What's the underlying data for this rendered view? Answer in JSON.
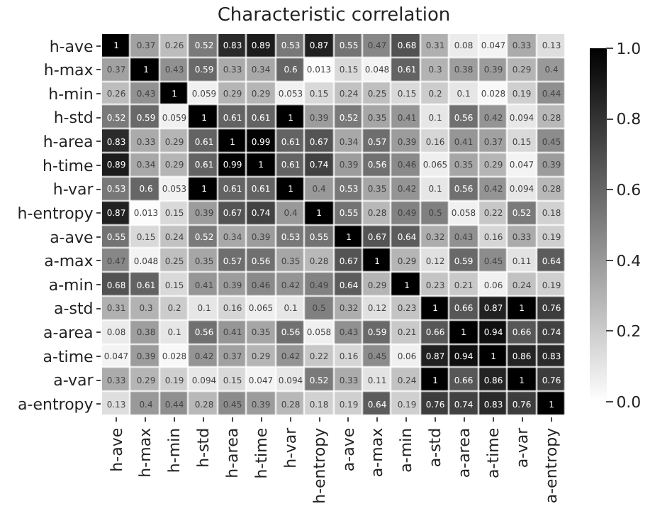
{
  "chart_data": {
    "type": "heatmap",
    "title": "Characteristic correlation",
    "categories": [
      "h-ave",
      "h-max",
      "h-min",
      "h-std",
      "h-area",
      "h-time",
      "h-var",
      "h-entropy",
      "a-ave",
      "a-max",
      "a-min",
      "a-std",
      "a-area",
      "a-time",
      "a-var",
      "a-entropy"
    ],
    "y_categories": [
      "h-ave",
      "h-max",
      "h-min",
      "h-std",
      "h-area",
      "h-time",
      "h-var",
      "h-entropy",
      "a-ave",
      "a-max",
      "a-min",
      "a-std",
      "a-area",
      "a-time",
      "a-var",
      "a-entropy"
    ],
    "cells": [
      [
        1,
        0.37,
        0.26,
        0.52,
        0.83,
        0.89,
        0.53,
        0.87,
        0.55,
        0.47,
        0.68,
        0.31,
        0.08,
        0.047,
        0.33,
        0.13
      ],
      [
        0.37,
        1,
        0.43,
        0.59,
        0.33,
        0.34,
        0.6,
        0.013,
        0.15,
        0.048,
        0.61,
        0.3,
        0.38,
        0.39,
        0.29,
        0.4
      ],
      [
        0.26,
        0.43,
        1,
        0.059,
        0.29,
        0.29,
        0.053,
        0.15,
        0.24,
        0.25,
        0.15,
        0.2,
        0.1,
        0.028,
        0.19,
        0.44
      ],
      [
        0.52,
        0.59,
        0.059,
        1,
        0.61,
        0.61,
        1,
        0.39,
        0.52,
        0.35,
        0.41,
        0.1,
        0.56,
        0.42,
        0.094,
        0.28
      ],
      [
        0.83,
        0.33,
        0.29,
        0.61,
        1,
        0.99,
        0.61,
        0.67,
        0.34,
        0.57,
        0.39,
        0.16,
        0.41,
        0.37,
        0.15,
        0.45
      ],
      [
        0.89,
        0.34,
        0.29,
        0.61,
        0.99,
        1,
        0.61,
        0.74,
        0.39,
        0.56,
        0.46,
        0.065,
        0.35,
        0.29,
        0.047,
        0.39
      ],
      [
        0.53,
        0.6,
        0.053,
        1,
        0.61,
        0.61,
        1,
        0.4,
        0.53,
        0.35,
        0.42,
        0.1,
        0.56,
        0.42,
        0.094,
        0.28
      ],
      [
        0.87,
        0.013,
        0.15,
        0.39,
        0.67,
        0.74,
        0.4,
        1,
        0.55,
        0.28,
        0.49,
        0.5,
        0.058,
        0.22,
        0.52,
        0.18
      ],
      [
        0.55,
        0.15,
        0.24,
        0.52,
        0.34,
        0.39,
        0.53,
        0.55,
        1,
        0.67,
        0.64,
        0.32,
        0.43,
        0.16,
        0.33,
        0.19
      ],
      [
        0.47,
        0.048,
        0.25,
        0.35,
        0.57,
        0.56,
        0.35,
        0.28,
        0.67,
        1,
        0.29,
        0.12,
        0.59,
        0.45,
        0.11,
        0.64
      ],
      [
        0.68,
        0.61,
        0.15,
        0.41,
        0.39,
        0.46,
        0.42,
        0.49,
        0.64,
        0.29,
        1,
        0.23,
        0.21,
        0.06,
        0.24,
        0.19
      ],
      [
        0.31,
        0.3,
        0.2,
        0.1,
        0.16,
        0.065,
        0.1,
        0.5,
        0.32,
        0.12,
        0.23,
        1,
        0.66,
        0.87,
        1,
        0.76
      ],
      [
        0.08,
        0.38,
        0.1,
        0.56,
        0.41,
        0.35,
        0.56,
        0.058,
        0.43,
        0.59,
        0.21,
        0.66,
        1,
        0.94,
        0.66,
        0.74
      ],
      [
        0.047,
        0.39,
        0.028,
        0.42,
        0.37,
        0.29,
        0.42,
        0.22,
        0.16,
        0.45,
        0.06,
        0.87,
        0.94,
        1,
        0.86,
        0.83
      ],
      [
        0.33,
        0.29,
        0.19,
        0.094,
        0.15,
        0.047,
        0.094,
        0.52,
        0.33,
        0.11,
        0.24,
        1,
        0.66,
        0.86,
        1,
        0.76
      ],
      [
        0.13,
        0.4,
        0.44,
        0.28,
        0.45,
        0.39,
        0.28,
        0.18,
        0.19,
        0.64,
        0.19,
        0.76,
        0.74,
        0.83,
        0.76,
        1
      ]
    ],
    "data_labels": true,
    "clim": [
      0,
      1
    ],
    "cticks": [
      {
        "value": 0,
        "label": "0.0"
      },
      {
        "value": 0.2,
        "label": "0.2"
      },
      {
        "value": 0.4,
        "label": "0.4"
      },
      {
        "value": 0.6,
        "label": "0.6"
      },
      {
        "value": 0.8,
        "label": "0.8"
      },
      {
        "value": 1,
        "label": "1.0"
      }
    ]
  }
}
